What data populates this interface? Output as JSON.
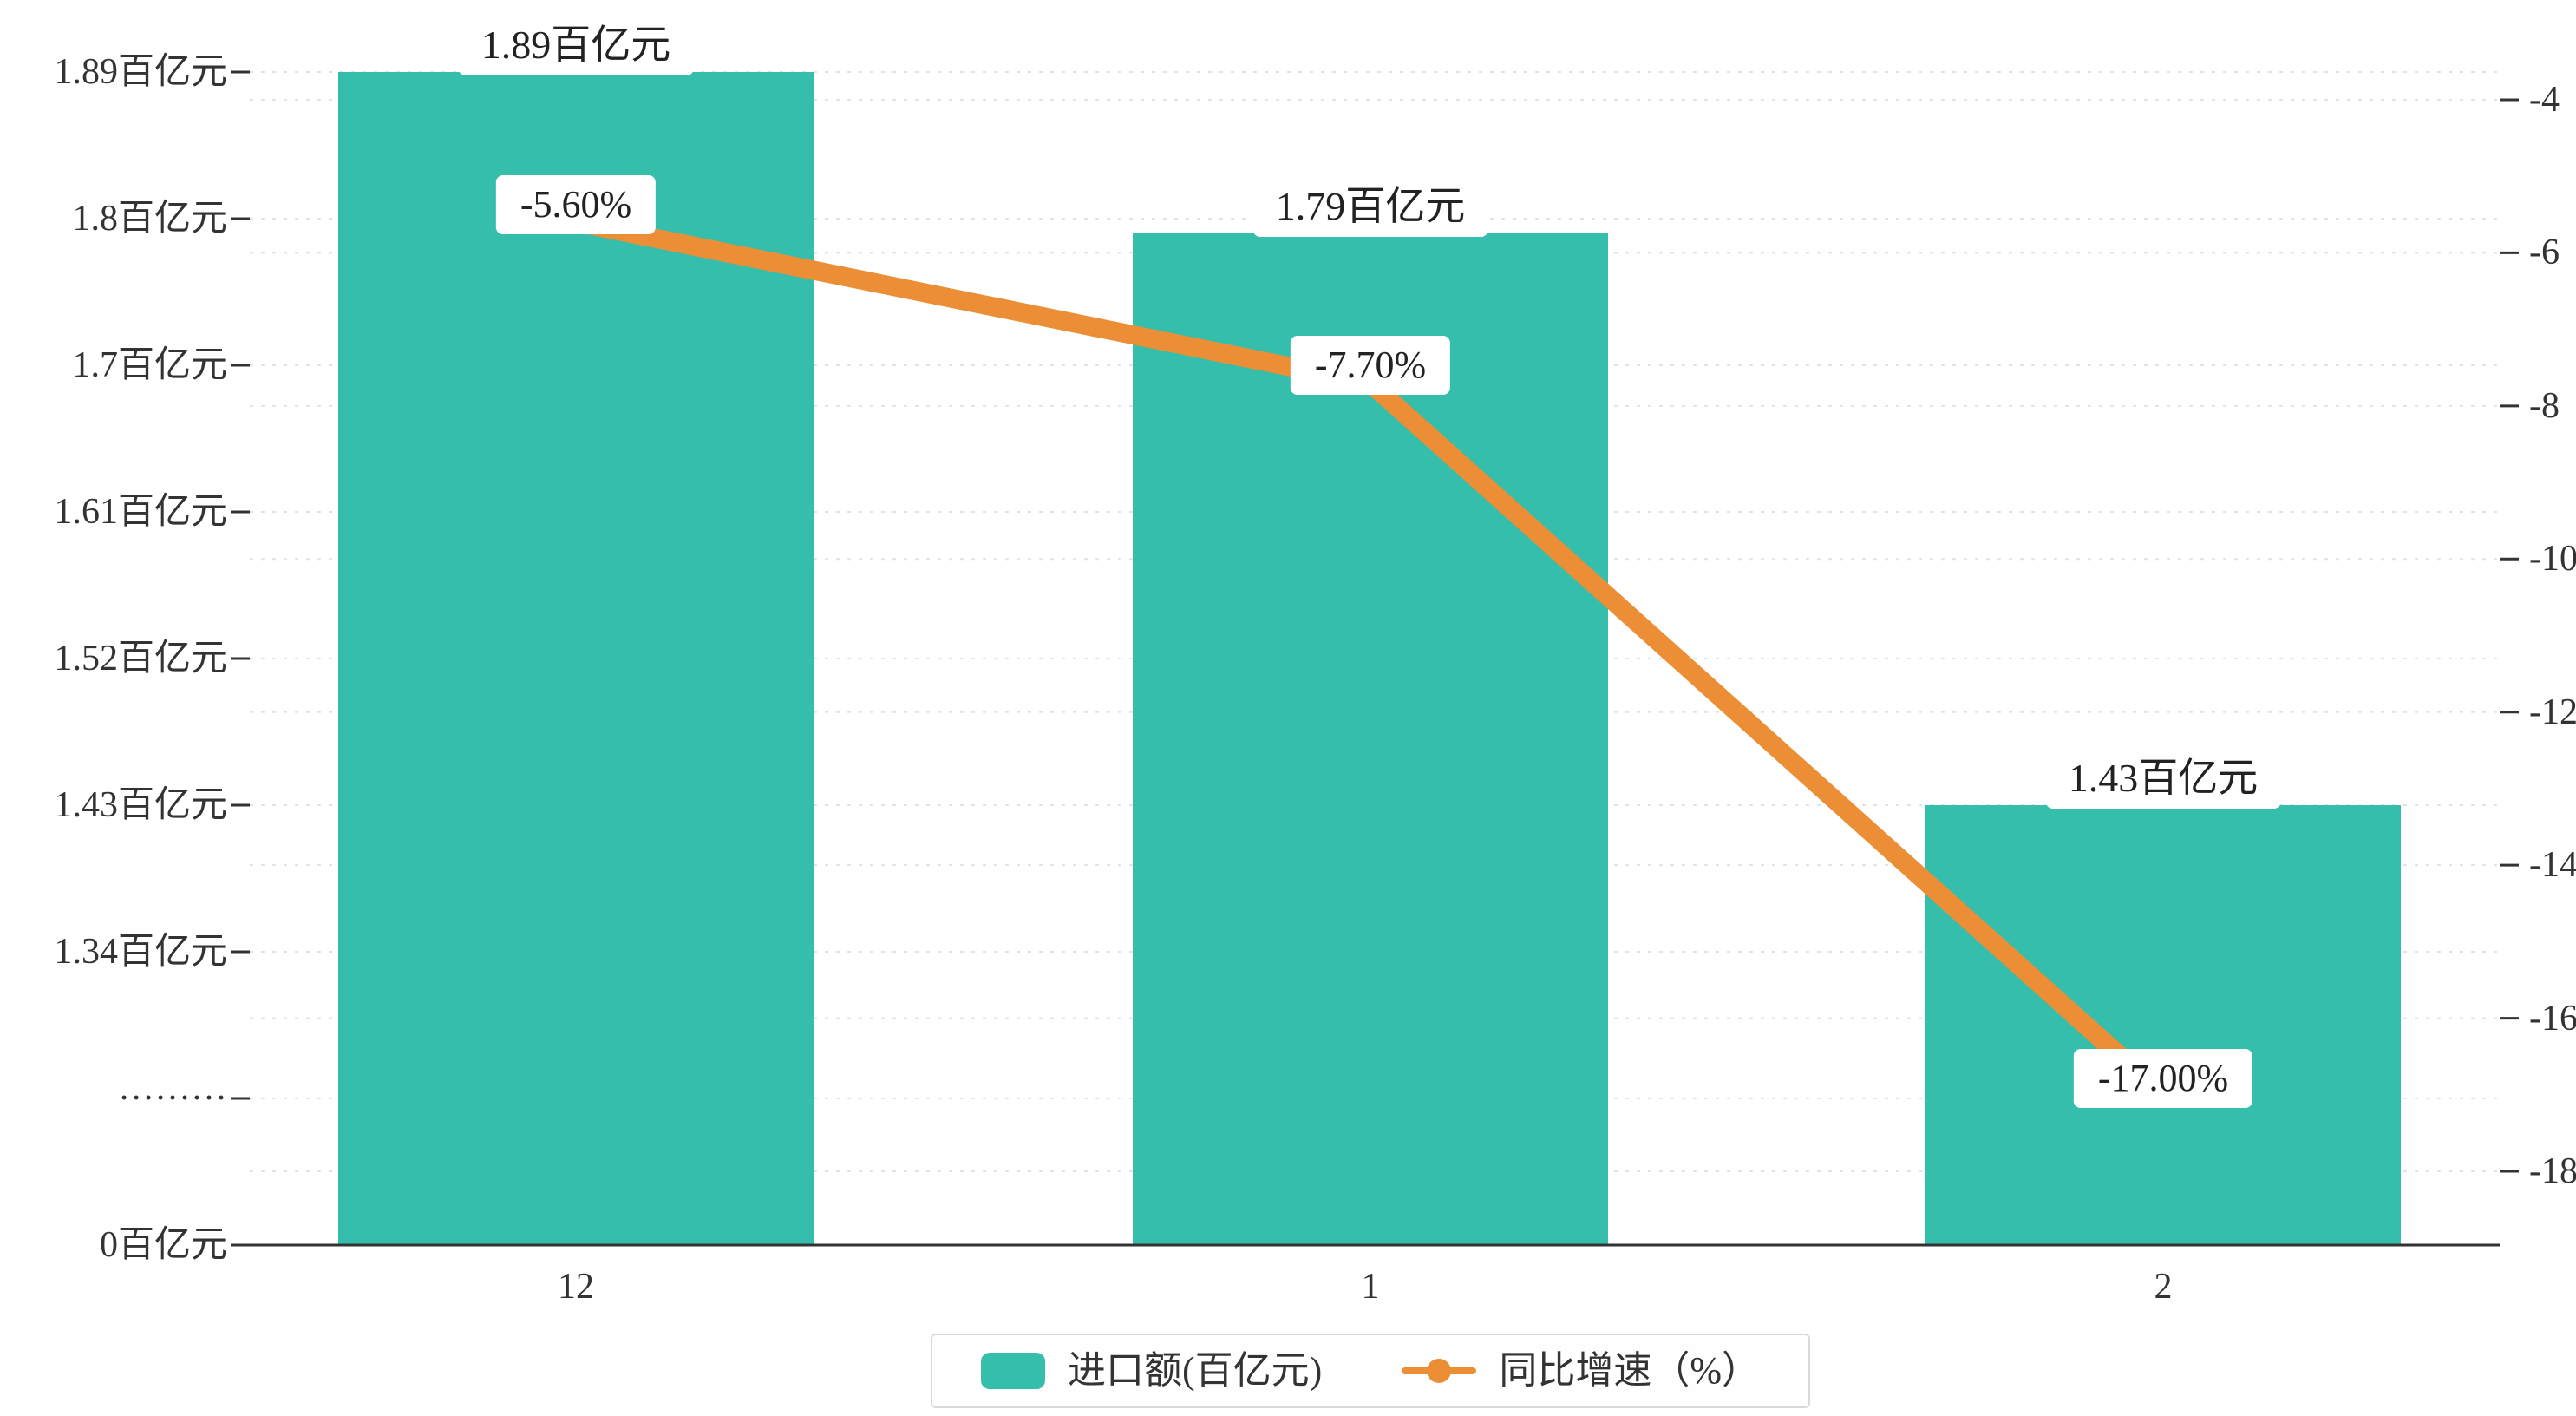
{
  "chart_data": {
    "type": "bar",
    "subtype": "bar-line-combo",
    "categories": [
      "12",
      "1",
      "2"
    ],
    "series": [
      {
        "name": "进口额(百亿元)",
        "type": "bar",
        "yaxis": "left",
        "color": "#35beac",
        "values": [
          1.89,
          1.79,
          1.43
        ],
        "data_labels": [
          "1.89百亿元",
          "1.79百亿元",
          "1.43百亿元"
        ]
      },
      {
        "name": "同比增速（%）",
        "type": "line",
        "yaxis": "right",
        "color": "#eb8e36",
        "values": [
          -5.6,
          -7.7,
          -17.0
        ],
        "data_labels": [
          "-5.60%",
          "-7.70%",
          "-17.00%"
        ]
      }
    ],
    "left_axis": {
      "tick_labels_top_down": [
        "1.89百亿元",
        "1.8百亿元",
        "1.7百亿元",
        "1.61百亿元",
        "1.52百亿元",
        "1.43百亿元",
        "1.34百亿元",
        "·········",
        "0百亿元"
      ],
      "tick_values_top_down": [
        1.89,
        1.8,
        1.7,
        1.61,
        1.52,
        1.43,
        1.34,
        null,
        0
      ],
      "broken_axis": true
    },
    "right_axis": {
      "tick_labels_top_down": [
        "-4",
        "-6",
        "-8",
        "-10",
        "-12",
        "-14",
        "-16",
        "-18"
      ],
      "max": -4,
      "min": -18
    },
    "grid": "dashed-horizontal",
    "legend_position": "bottom-center"
  }
}
